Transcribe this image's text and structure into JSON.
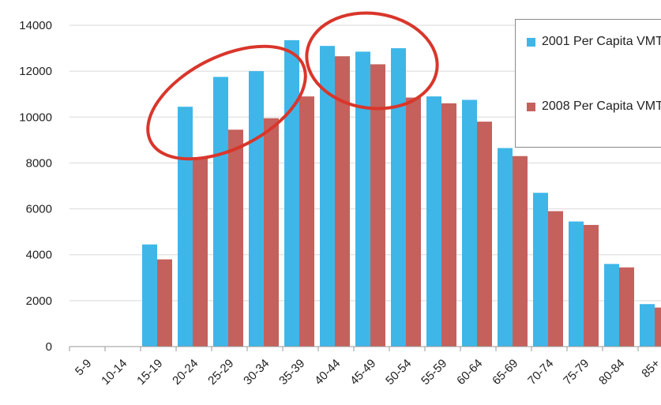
{
  "chart_data": {
    "type": "bar",
    "categories": [
      "5-9",
      "10-14",
      "15-19",
      "20-24",
      "25-29",
      "30-34",
      "35-39",
      "40-44",
      "45-49",
      "50-54",
      "55-59",
      "60-64",
      "65-69",
      "70-74",
      "75-79",
      "80-84",
      "85+"
    ],
    "series": [
      {
        "name": "2001 Per Capita VMT",
        "color": "#3fb6e8",
        "values": [
          0,
          0,
          4450,
          10450,
          11750,
          12000,
          13350,
          13100,
          12850,
          13000,
          10900,
          10750,
          8650,
          6700,
          5450,
          3600,
          1850
        ]
      },
      {
        "name": "2008 Per Capita VMT",
        "color": "#c4615c",
        "values": [
          0,
          0,
          3800,
          8250,
          9450,
          9950,
          10900,
          12650,
          12300,
          10850,
          10600,
          9800,
          8300,
          5900,
          5300,
          3450,
          1700
        ]
      }
    ],
    "y_ticks": [
      "0",
      "2000",
      "4000",
      "6000",
      "8000",
      "10000",
      "12000",
      "14000"
    ],
    "ylim": [
      0,
      14000
    ],
    "grid": true,
    "legend": "top-right",
    "annotations": [
      {
        "shape": "ellipse",
        "color": "#d9362b",
        "highlights": [
          "20-24",
          "25-29",
          "30-34",
          "35-39"
        ]
      },
      {
        "shape": "ellipse",
        "color": "#d9362b",
        "highlights": [
          "40-44",
          "45-49",
          "50-54"
        ]
      }
    ]
  }
}
